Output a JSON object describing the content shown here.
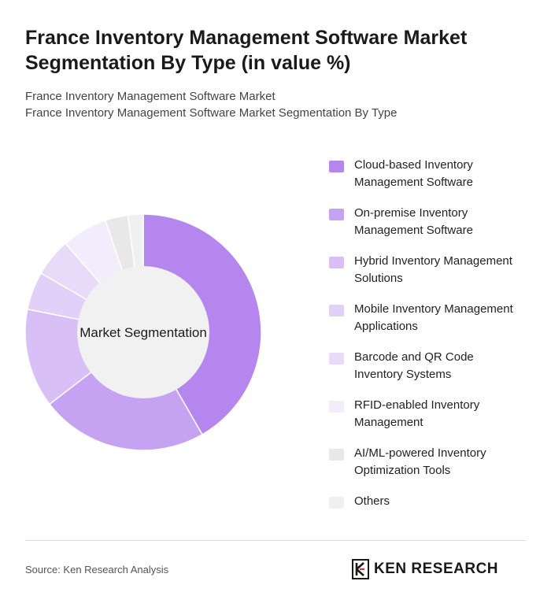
{
  "title": "France Inventory Management Software Market Segmentation By Type (in value %)",
  "subtitle_lines": [
    "France Inventory Management Software Market",
    "France Inventory Management Software Market Segmentation By Type"
  ],
  "chart_data": {
    "type": "pie",
    "center_label": "Market Segmentation",
    "categories": [
      "Cloud-based Inventory Management Software",
      "On-premise Inventory Management Software",
      "Hybrid Inventory Management Solutions",
      "Mobile Inventory Management Applications",
      "Barcode and QR Code Inventory Systems",
      "RFID-enabled Inventory Management",
      "AI/ML-powered Inventory Optimization Tools",
      "Others"
    ],
    "values": [
      40,
      22,
      13,
      5,
      5,
      6,
      3,
      2
    ],
    "colors": [
      "#b486ee",
      "#c6a3f2",
      "#d8c0f6",
      "#e2d0f8",
      "#e8dbf9",
      "#f2ecfc",
      "#e8e8e8",
      "#f0f0f0"
    ],
    "legend_position": "right"
  },
  "legend_lines": [
    [
      "Cloud-based Inventory",
      "Management Software"
    ],
    [
      "On-premise Inventory",
      "Management Software"
    ],
    [
      "Hybrid Inventory Management",
      "Solutions"
    ],
    [
      "Mobile Inventory Management",
      "Applications"
    ],
    [
      "Barcode and QR Code",
      "Inventory Systems"
    ],
    [
      "RFID-enabled Inventory",
      "Management"
    ],
    [
      "AI/ML-powered Inventory",
      "Optimization Tools"
    ],
    [
      "Others"
    ]
  ],
  "source": "Source: Ken Research Analysis",
  "logo_text": "KEN RESEARCH",
  "logo_icon": "ken-research-logo-icon"
}
